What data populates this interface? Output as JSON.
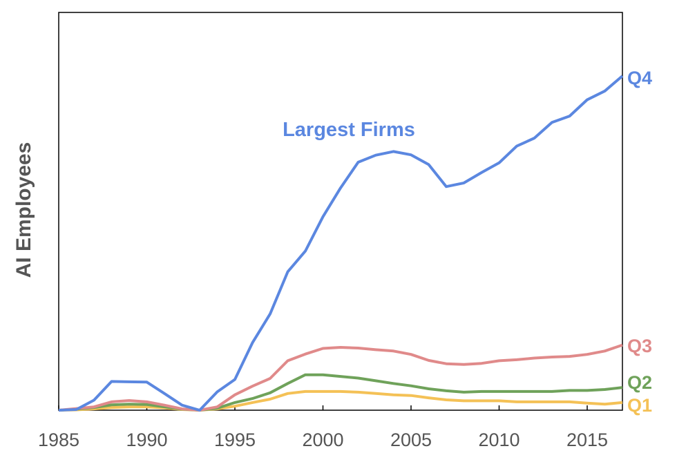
{
  "chart_data": {
    "type": "line",
    "title": "",
    "xlabel": "",
    "ylabel": "AI Employees",
    "xlim": [
      1985,
      2017
    ],
    "ylim": [
      0,
      100
    ],
    "x_ticks": [
      "1985",
      "1990",
      "1995",
      "2000",
      "2005",
      "2010",
      "2015"
    ],
    "y_ticks_shown": false,
    "grid": false,
    "legend": "end-of-line labels",
    "annotation": {
      "text": "Largest Firms",
      "color": "#5B87E0"
    },
    "x": [
      1985,
      1986,
      1987,
      1988,
      1989,
      1990,
      1991,
      1992,
      1993,
      1994,
      1995,
      1996,
      1997,
      1998,
      1999,
      2000,
      2001,
      2002,
      2003,
      2004,
      2005,
      2006,
      2007,
      2008,
      2009,
      2010,
      2011,
      2012,
      2013,
      2014,
      2015,
      2016,
      2017
    ],
    "series": [
      {
        "name": "Q4",
        "color": "#5B87E0",
        "values": [
          0,
          0.2,
          3,
          8.6,
          8.5,
          8.4,
          5,
          1.5,
          0,
          5.5,
          9.2,
          20.2,
          28.8,
          41.4,
          47.6,
          57.9,
          66.5,
          74.2,
          76.3,
          77.4,
          76.4,
          73.5,
          66.9,
          68,
          71.1,
          74,
          79,
          81.4,
          86.1,
          88,
          92.9,
          95.5,
          100
        ]
      },
      {
        "name": "Q3",
        "color": "#E08A8A",
        "values": [
          0,
          0.5,
          1,
          2.5,
          2.9,
          2.5,
          1.5,
          0.4,
          0,
          1,
          4.6,
          7.2,
          9.5,
          14.8,
          16.8,
          18.5,
          18.8,
          18.6,
          18.1,
          17.7,
          16.7,
          14.9,
          13.9,
          13.7,
          14,
          14.8,
          15.1,
          15.6,
          15.9,
          16.1,
          16.7,
          17.7,
          19.5
        ]
      },
      {
        "name": "Q2",
        "color": "#6FA25A",
        "values": [
          0,
          0.3,
          0.8,
          1.6,
          1.8,
          1.7,
          1.0,
          0.3,
          0,
          0.6,
          2.3,
          3.5,
          5.2,
          8.0,
          10.6,
          10.6,
          10.1,
          9.6,
          8.8,
          8.0,
          7.3,
          6.4,
          5.8,
          5.4,
          5.6,
          5.6,
          5.6,
          5.6,
          5.6,
          5.9,
          5.9,
          6.2,
          6.8
        ]
      },
      {
        "name": "Q1",
        "color": "#F4C156",
        "values": [
          0,
          0.1,
          0.4,
          0.8,
          1.0,
          1.0,
          0.7,
          0.2,
          0,
          0.4,
          1.2,
          2.3,
          3.3,
          5.0,
          5.6,
          5.6,
          5.6,
          5.4,
          5.0,
          4.6,
          4.4,
          3.7,
          3.1,
          2.8,
          2.8,
          2.8,
          2.5,
          2.5,
          2.5,
          2.5,
          2.1,
          1.8,
          2.3
        ]
      }
    ]
  }
}
